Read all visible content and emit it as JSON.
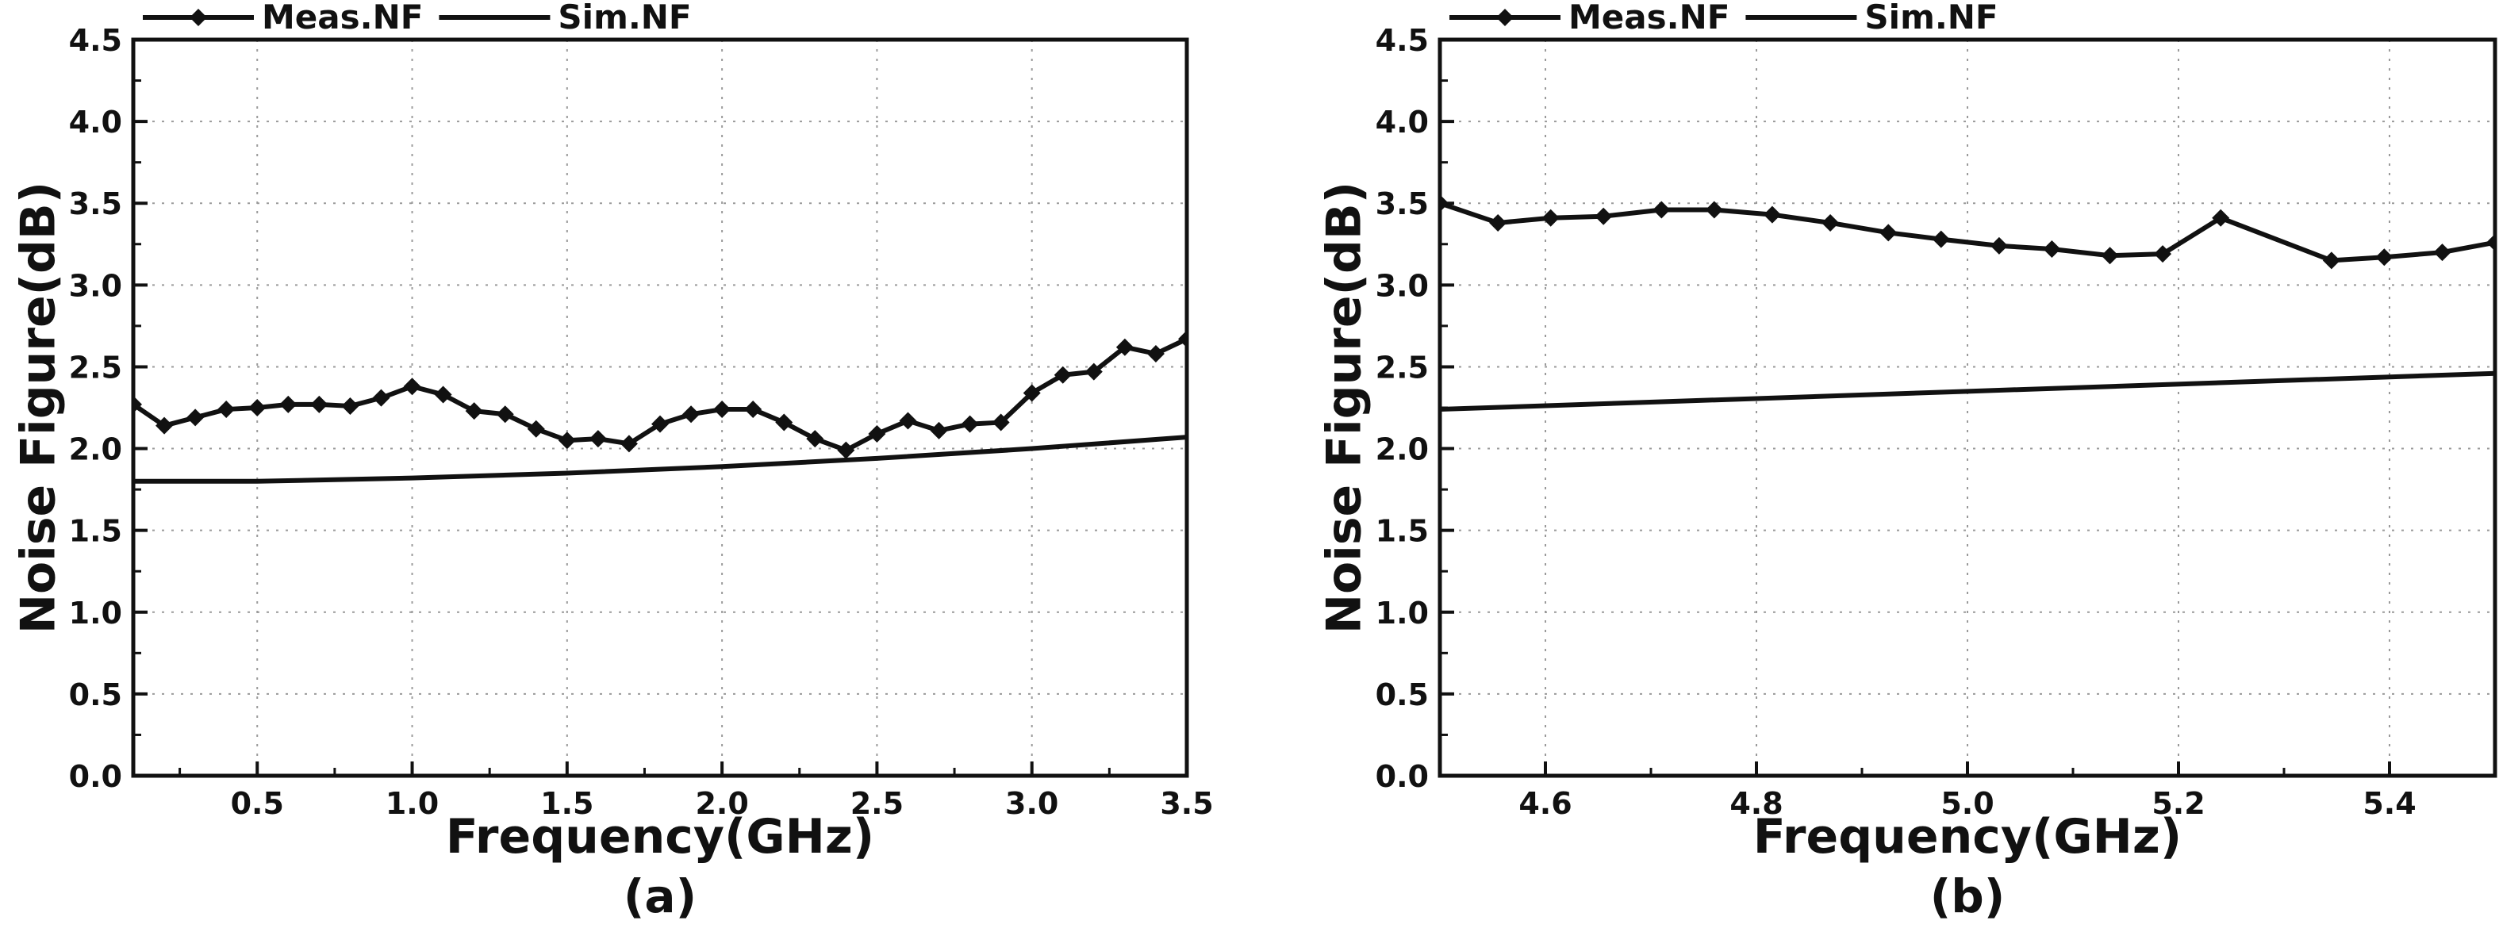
{
  "chart_data": [
    {
      "type": "line",
      "panel_label": "(a)",
      "xlabel": "Frequency(GHz)",
      "ylabel": "Noise Figure(dB)",
      "xlim": [
        0.1,
        3.5
      ],
      "ylim": [
        0.0,
        4.5
      ],
      "x_ticks": [
        0.5,
        1.0,
        1.5,
        2.0,
        2.5,
        3.0,
        3.5
      ],
      "x_tick_labels": [
        "0.5",
        "1.0",
        "1.5",
        "2.0",
        "2.5",
        "3.0",
        "3.5"
      ],
      "y_ticks": [
        0.0,
        0.5,
        1.0,
        1.5,
        2.0,
        2.5,
        3.0,
        3.5,
        4.0,
        4.5
      ],
      "y_tick_labels": [
        "0.0",
        "0.5",
        "1.0",
        "1.5",
        "2.0",
        "2.5",
        "3.0",
        "3.5",
        "4.0",
        "4.5"
      ],
      "grid": true,
      "legend_position": "top-left",
      "series": [
        {
          "name": "Meas.NF",
          "marker": "diamond",
          "color": "#111111",
          "x": [
            0.1,
            0.2,
            0.3,
            0.4,
            0.5,
            0.6,
            0.7,
            0.8,
            0.9,
            1.0,
            1.1,
            1.2,
            1.3,
            1.4,
            1.5,
            1.6,
            1.7,
            1.8,
            1.9,
            2.0,
            2.1,
            2.2,
            2.3,
            2.4,
            2.5,
            2.6,
            2.7,
            2.8,
            2.9,
            3.0,
            3.1,
            3.2,
            3.3,
            3.4,
            3.5
          ],
          "y": [
            2.27,
            2.14,
            2.19,
            2.24,
            2.25,
            2.27,
            2.27,
            2.26,
            2.31,
            2.38,
            2.33,
            2.23,
            2.21,
            2.12,
            2.05,
            2.06,
            2.03,
            2.15,
            2.21,
            2.24,
            2.24,
            2.16,
            2.06,
            1.99,
            2.09,
            2.17,
            2.11,
            2.15,
            2.16,
            2.34,
            2.45,
            2.47,
            2.62,
            2.58,
            2.67
          ]
        },
        {
          "name": "Sim.NF",
          "marker": "none",
          "color": "#111111",
          "x": [
            0.1,
            0.5,
            1.0,
            1.5,
            2.0,
            2.5,
            3.0,
            3.5
          ],
          "y": [
            1.8,
            1.8,
            1.82,
            1.85,
            1.89,
            1.94,
            2.0,
            2.07
          ]
        }
      ]
    },
    {
      "type": "line",
      "panel_label": "(b)",
      "xlabel": "Frequency(GHz)",
      "ylabel": "Noise Figure(dB)",
      "xlim": [
        4.5,
        5.5
      ],
      "ylim": [
        0.0,
        4.5
      ],
      "x_ticks": [
        4.6,
        4.8,
        5.0,
        5.2,
        5.4
      ],
      "x_tick_labels": [
        "4.6",
        "4.8",
        "5.0",
        "5.2",
        "5.4"
      ],
      "y_ticks": [
        0.0,
        0.5,
        1.0,
        1.5,
        2.0,
        2.5,
        3.0,
        3.5,
        4.0,
        4.5
      ],
      "y_tick_labels": [
        "0.0",
        "0.5",
        "1.0",
        "1.5",
        "2.0",
        "2.5",
        "3.0",
        "3.5",
        "4.0",
        "4.5"
      ],
      "grid": true,
      "legend_position": "top-left",
      "series": [
        {
          "name": "Meas.NF",
          "marker": "diamond",
          "color": "#111111",
          "x": [
            4.5,
            4.555,
            4.605,
            4.655,
            4.71,
            4.76,
            4.815,
            4.87,
            4.925,
            4.975,
            5.03,
            5.08,
            5.135,
            5.185,
            5.24,
            5.345,
            5.395,
            5.45,
            5.5
          ],
          "y": [
            3.5,
            3.38,
            3.41,
            3.42,
            3.46,
            3.46,
            3.43,
            3.38,
            3.32,
            3.28,
            3.24,
            3.22,
            3.18,
            3.19,
            3.41,
            3.15,
            3.17,
            3.2,
            3.26
          ]
        },
        {
          "name": "Sim.NF",
          "marker": "none",
          "color": "#111111",
          "x": [
            4.5,
            5.0,
            5.5
          ],
          "y": [
            2.24,
            2.35,
            2.46
          ]
        }
      ]
    }
  ]
}
